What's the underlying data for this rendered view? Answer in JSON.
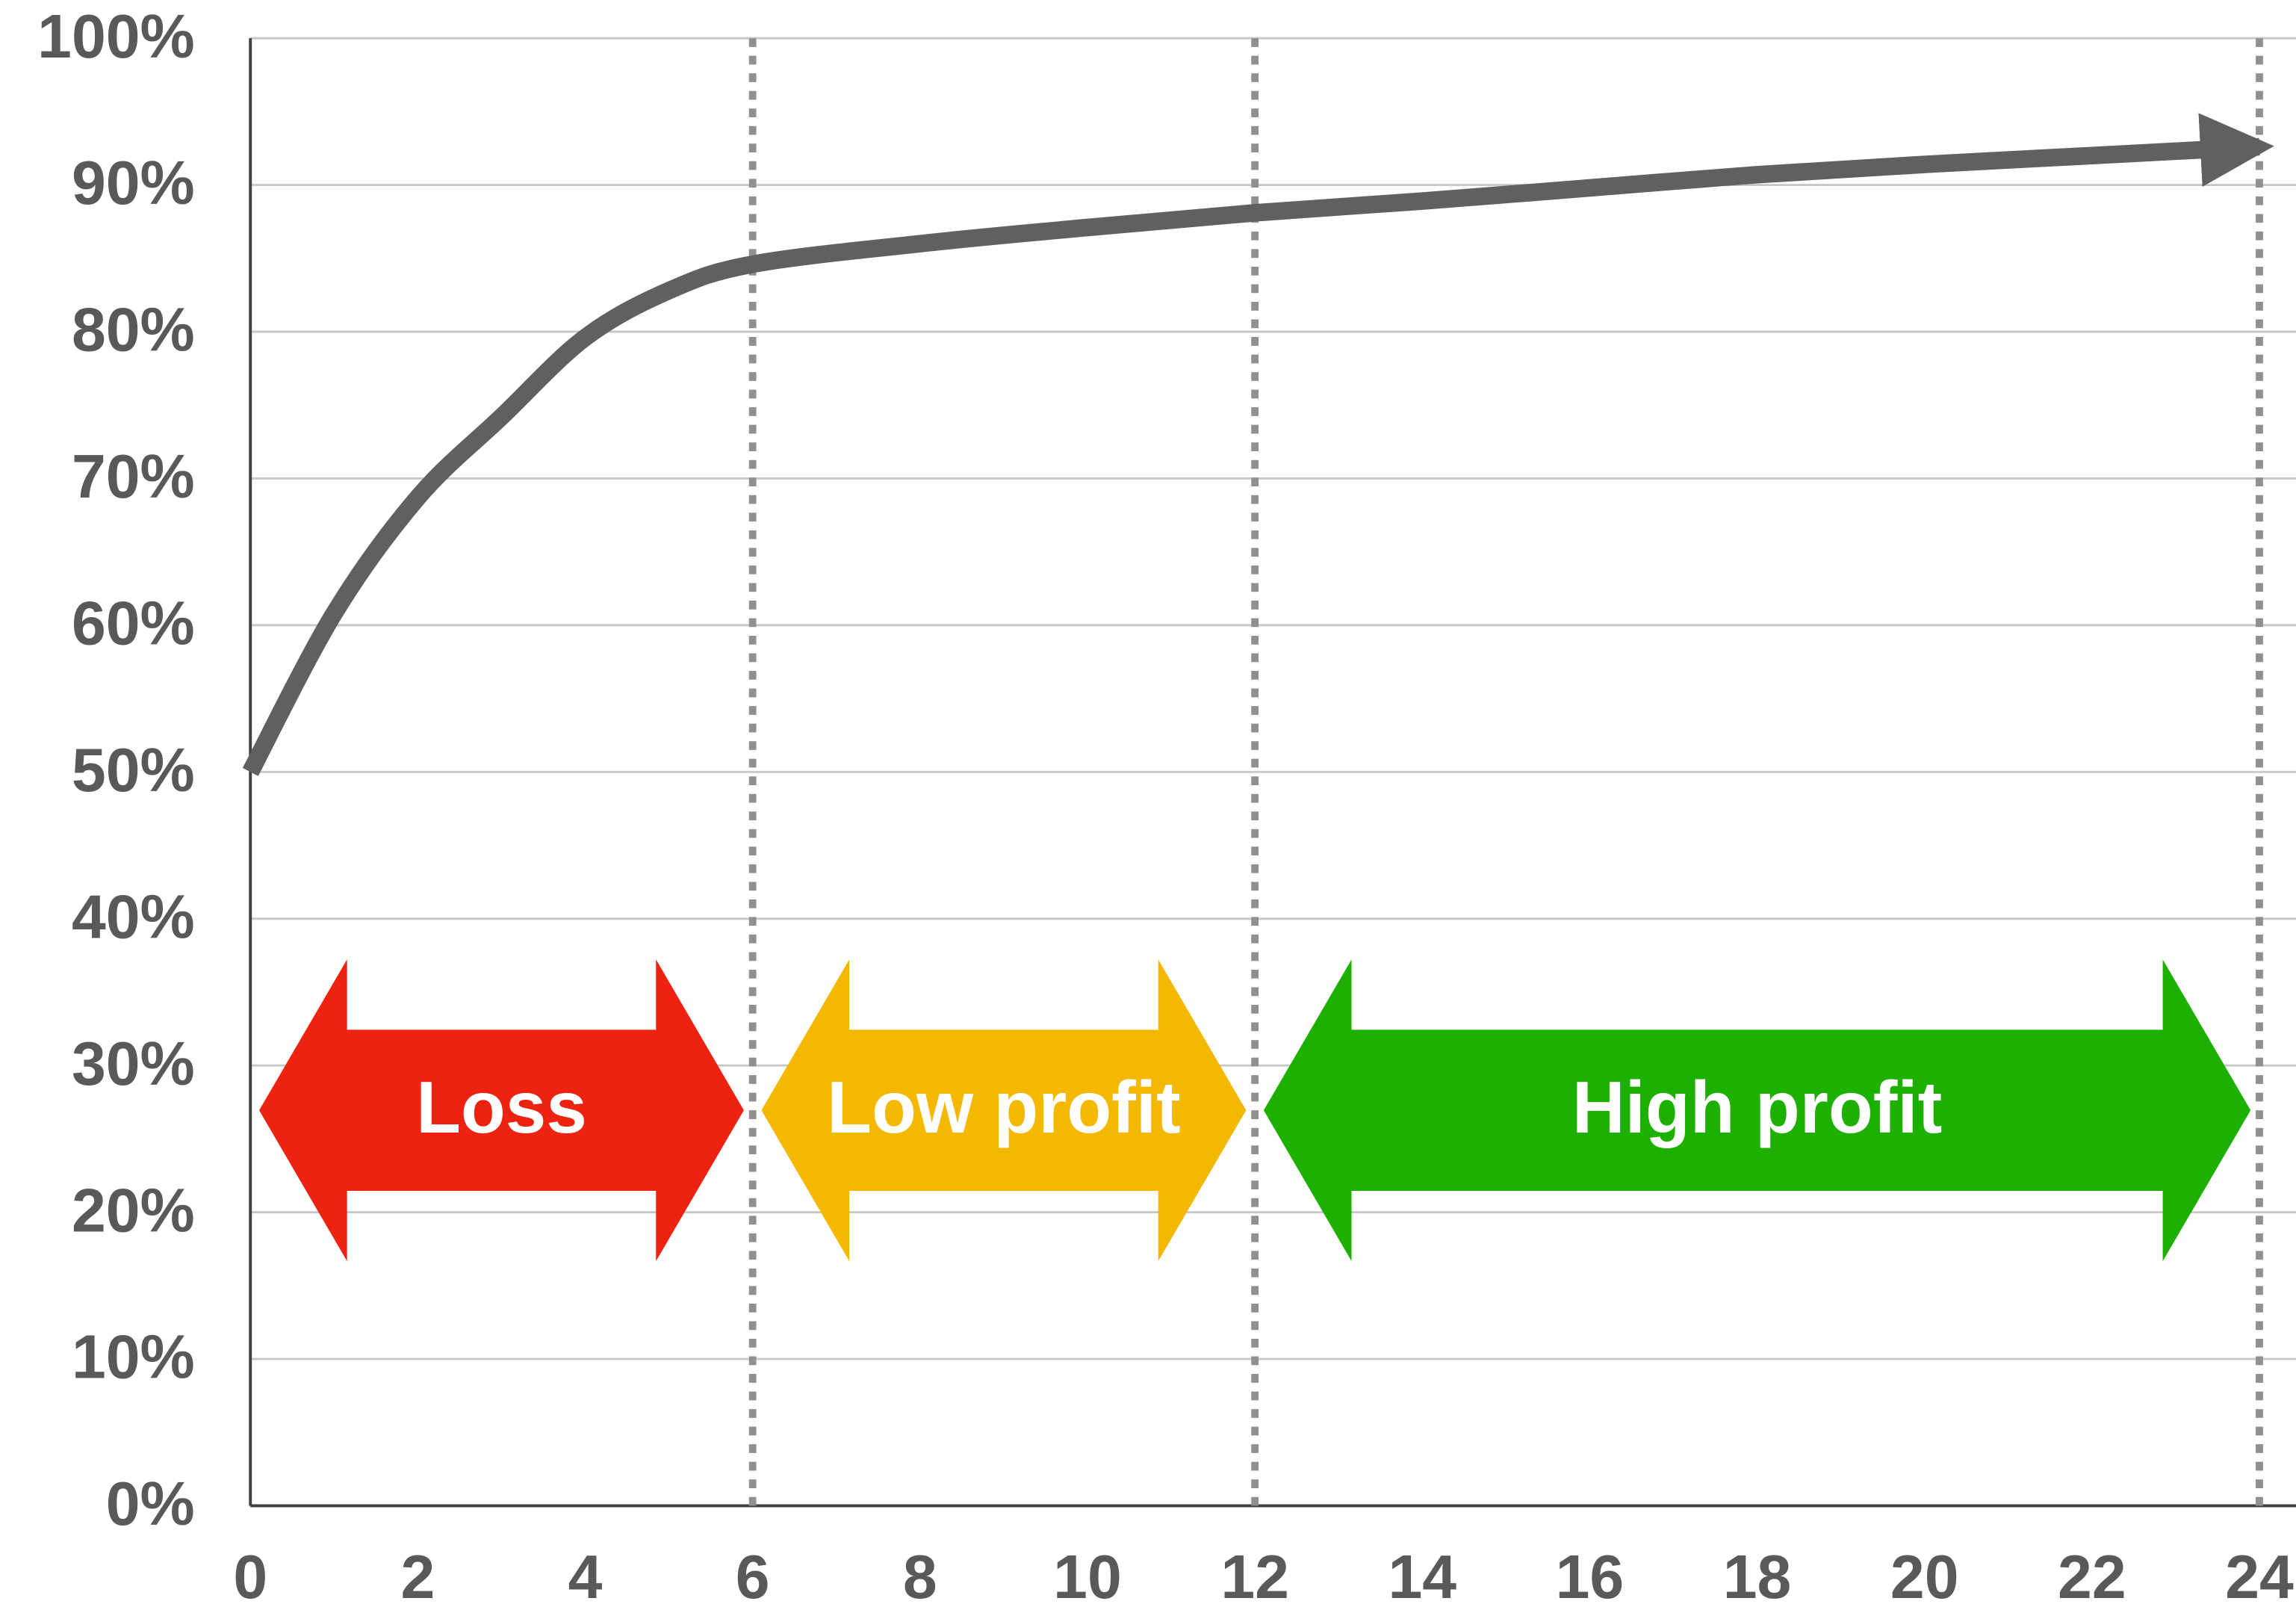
{
  "chart_data": {
    "type": "line",
    "x": [
      0,
      1,
      2,
      3,
      4,
      5,
      6,
      8,
      10,
      12,
      14,
      16,
      18,
      20,
      22,
      24
    ],
    "values": [
      50,
      60.8,
      68.7,
      74.2,
      79.6,
      82.8,
      84.6,
      86,
      87.1,
      88.1,
      88.9,
      89.8,
      90.7,
      91.4,
      92,
      92.6
    ],
    "color": "#606060",
    "xlim": [
      0,
      24
    ],
    "xticks": [
      0,
      2,
      4,
      6,
      8,
      10,
      12,
      14,
      16,
      18,
      20,
      22,
      24
    ],
    "ylim": [
      0,
      100
    ],
    "yticks": [
      {
        "value": 0,
        "label": "0%"
      },
      {
        "value": 10,
        "label": "10%"
      },
      {
        "value": 20,
        "label": "20%"
      },
      {
        "value": 30,
        "label": "30%"
      },
      {
        "value": 40,
        "label": "40%"
      },
      {
        "value": 50,
        "label": "50%"
      },
      {
        "value": 60,
        "label": "60%"
      },
      {
        "value": 70,
        "label": "70%"
      },
      {
        "value": 80,
        "label": "80%"
      },
      {
        "value": 90,
        "label": "90%"
      },
      {
        "value": 100,
        "label": "100%"
      }
    ],
    "grid": true,
    "vlines": [
      6,
      12,
      24
    ],
    "regions": [
      {
        "label": "Loss",
        "from": 0,
        "to": 6,
        "color": "#ee2211"
      },
      {
        "label": "Low profit",
        "from": 6,
        "to": 12,
        "color": "#f5b800"
      },
      {
        "label": "High profit",
        "from": 12,
        "to": 24,
        "color": "#1eb000"
      }
    ]
  }
}
